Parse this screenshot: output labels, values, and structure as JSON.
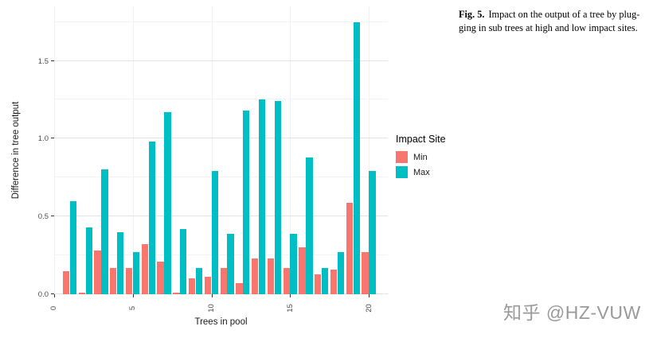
{
  "figure": {
    "caption_label": "Fig. 5.",
    "caption_line1": "Impact on the output of a tree by plug-",
    "caption_line2": "ging in sub trees at high and low impact sites."
  },
  "watermark": "知乎 @HZ-VUW",
  "chart_data": {
    "type": "bar",
    "title": "",
    "xlabel": "Trees in pool",
    "ylabel": "Difference in tree output",
    "legend_title": "Impact Site",
    "legend_position": "right",
    "grid": true,
    "x": [
      1,
      2,
      3,
      4,
      5,
      6,
      7,
      8,
      9,
      10,
      11,
      12,
      13,
      14,
      15,
      16,
      17,
      18,
      19,
      20
    ],
    "series": [
      {
        "name": "Min",
        "color": "#F8766D",
        "values": [
          0.15,
          0.01,
          0.28,
          0.17,
          0.17,
          0.32,
          0.21,
          0.01,
          0.1,
          0.11,
          0.17,
          0.07,
          0.23,
          0.23,
          0.17,
          0.3,
          0.13,
          0.16,
          0.59,
          0.27
        ]
      },
      {
        "name": "Max",
        "color": "#00BFC4",
        "values": [
          0.6,
          0.43,
          0.8,
          0.4,
          0.27,
          0.98,
          1.17,
          0.42,
          0.17,
          0.79,
          0.39,
          1.18,
          1.25,
          1.24,
          0.39,
          0.88,
          0.17,
          0.27,
          1.75,
          0.79
        ]
      }
    ],
    "x_ticks": [
      0,
      5,
      10,
      15,
      20
    ],
    "x_tick_labels": [
      "0",
      "5",
      "10",
      "15",
      "20"
    ],
    "y_ticks": [
      0,
      0.5,
      1,
      1.5
    ],
    "y_tick_labels": [
      "0.0",
      "0.5",
      "1.0",
      "1.5"
    ],
    "xlim": [
      0,
      21.2
    ],
    "ylim": [
      0,
      1.85
    ],
    "bar_width": 0.45
  }
}
